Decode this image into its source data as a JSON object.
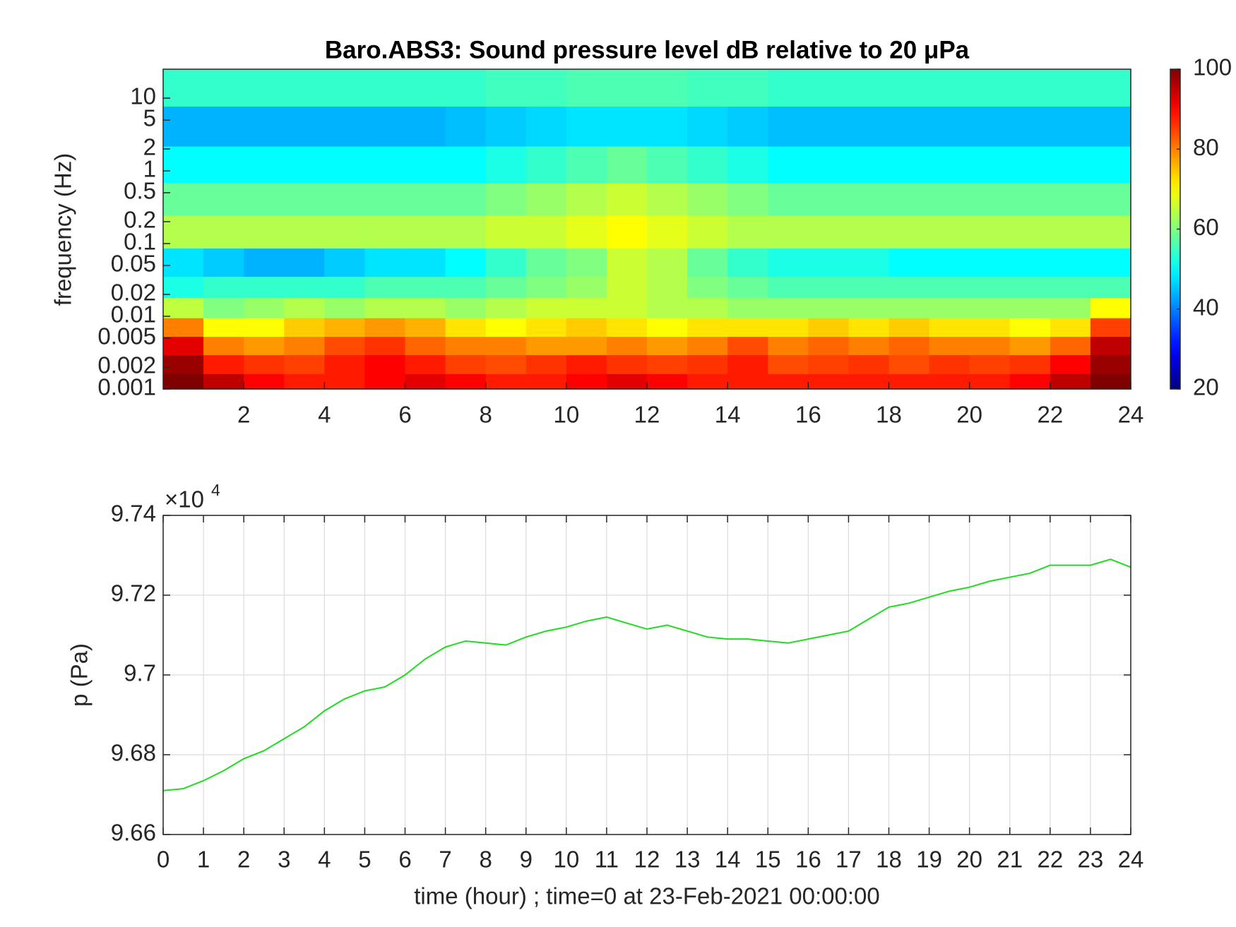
{
  "chart_data": [
    {
      "type": "heatmap",
      "title": "Baro.ABS3: Sound pressure level dB relative to 20 μPa",
      "y_label": "frequency (Hz)",
      "x": [
        0.5,
        1.5,
        2.5,
        3.5,
        4.5,
        5.5,
        6.5,
        7.5,
        8.5,
        9.5,
        10.5,
        11.5,
        12.5,
        13.5,
        14.5,
        15.5,
        16.5,
        17.5,
        18.5,
        19.5,
        20.5,
        21.5,
        22.5,
        23.5
      ],
      "y": [
        0.0012,
        0.0022,
        0.004,
        0.007,
        0.013,
        0.025,
        0.05,
        0.15,
        0.4,
        1.2,
        4,
        15
      ],
      "z": [
        [
          100,
          95,
          90,
          88,
          88,
          90,
          92,
          90,
          88,
          88,
          90,
          92,
          90,
          88,
          88,
          88,
          88,
          88,
          88,
          88,
          88,
          90,
          95,
          100
        ],
        [
          98,
          88,
          86,
          85,
          88,
          90,
          88,
          85,
          84,
          86,
          88,
          86,
          85,
          86,
          88,
          84,
          85,
          86,
          84,
          86,
          85,
          86,
          90,
          98
        ],
        [
          92,
          80,
          78,
          80,
          84,
          86,
          82,
          80,
          80,
          78,
          78,
          80,
          78,
          80,
          84,
          80,
          82,
          80,
          82,
          80,
          80,
          78,
          82,
          95
        ],
        [
          80,
          70,
          70,
          74,
          76,
          78,
          76,
          72,
          70,
          72,
          74,
          72,
          70,
          72,
          72,
          72,
          74,
          72,
          74,
          72,
          72,
          70,
          72,
          85
        ],
        [
          65,
          60,
          62,
          64,
          62,
          64,
          64,
          62,
          64,
          66,
          66,
          66,
          64,
          64,
          62,
          62,
          62,
          62,
          62,
          62,
          62,
          62,
          62,
          70
        ],
        [
          52,
          54,
          54,
          54,
          54,
          56,
          56,
          56,
          58,
          60,
          62,
          66,
          64,
          60,
          58,
          56,
          56,
          56,
          56,
          56,
          56,
          56,
          56,
          56
        ],
        [
          48,
          46,
          44,
          44,
          46,
          48,
          48,
          50,
          54,
          58,
          60,
          66,
          64,
          58,
          54,
          52,
          52,
          52,
          50,
          50,
          50,
          50,
          50,
          50
        ],
        [
          64,
          64,
          64,
          64,
          64,
          64,
          64,
          64,
          66,
          66,
          68,
          70,
          68,
          66,
          64,
          64,
          64,
          64,
          64,
          64,
          64,
          64,
          64,
          64
        ],
        [
          58,
          58,
          58,
          58,
          58,
          58,
          58,
          58,
          60,
          62,
          64,
          66,
          64,
          62,
          60,
          58,
          58,
          58,
          58,
          58,
          58,
          58,
          58,
          58
        ],
        [
          50,
          50,
          50,
          50,
          50,
          50,
          50,
          50,
          52,
          54,
          56,
          58,
          56,
          54,
          52,
          50,
          50,
          50,
          50,
          50,
          50,
          50,
          50,
          50
        ],
        [
          44,
          44,
          44,
          44,
          44,
          44,
          44,
          45,
          46,
          47,
          48,
          48,
          48,
          47,
          46,
          45,
          45,
          45,
          45,
          45,
          45,
          45,
          45,
          45
        ],
        [
          54,
          54,
          54,
          54,
          54,
          54,
          54,
          54,
          55,
          55,
          56,
          56,
          56,
          55,
          55,
          54,
          54,
          54,
          54,
          54,
          54,
          54,
          54,
          54
        ]
      ],
      "xlim": [
        0,
        24
      ],
      "xticks": [
        2,
        4,
        6,
        8,
        10,
        12,
        14,
        16,
        18,
        20,
        22,
        24
      ],
      "ylim": [
        0.001,
        25
      ],
      "log_y": true,
      "yticks": [
        0.001,
        0.002,
        0.005,
        0.01,
        0.02,
        0.05,
        0.1,
        0.2,
        0.5,
        1,
        2,
        5,
        10
      ],
      "colormap": "jet",
      "clim": [
        20,
        100
      ],
      "colorbar_ticks": [
        20,
        40,
        60,
        80,
        100
      ]
    },
    {
      "type": "line",
      "x_label": "time (hour) ; time=0 at 23-Feb-2021 00:00:00",
      "y_label": "p (Pa)",
      "y_multiplier": "×10",
      "y_multiplier_exponent": "4",
      "x": [
        0,
        0.5,
        1,
        1.5,
        2,
        2.5,
        3,
        3.5,
        4,
        4.5,
        5,
        5.5,
        6,
        6.5,
        7,
        7.5,
        8,
        8.5,
        9,
        9.5,
        10,
        10.5,
        11,
        11.5,
        12,
        12.5,
        13,
        13.5,
        14,
        14.5,
        15,
        15.5,
        16,
        16.5,
        17,
        17.5,
        18,
        18.5,
        19,
        19.5,
        20,
        20.5,
        21,
        21.5,
        22,
        22.5,
        23,
        23.5,
        24
      ],
      "series": [
        {
          "color": "#1edc1e",
          "values": [
            96710,
            96715,
            96735,
            96760,
            96790,
            96810,
            96840,
            96870,
            96910,
            96940,
            96960,
            96970,
            97000,
            97040,
            97070,
            97085,
            97080,
            97075,
            97095,
            97110,
            97120,
            97135,
            97145,
            97130,
            97115,
            97125,
            97110,
            97095,
            97090,
            97090,
            97085,
            97080,
            97090,
            97100,
            97110,
            97140,
            97170,
            97180,
            97195,
            97210,
            97220,
            97235,
            97245,
            97255,
            97275,
            97275,
            97275,
            97290,
            97270
          ]
        }
      ],
      "xlim": [
        0,
        24
      ],
      "xticks": [
        0,
        1,
        2,
        3,
        4,
        5,
        6,
        7,
        8,
        9,
        10,
        11,
        12,
        13,
        14,
        15,
        16,
        17,
        18,
        19,
        20,
        21,
        22,
        23,
        24
      ],
      "ylim": [
        96600,
        97400
      ],
      "yticks": [
        {
          "value": 96600,
          "label": "9.66"
        },
        {
          "value": 96800,
          "label": "9.68"
        },
        {
          "value": 97000,
          "label": "9.7"
        },
        {
          "value": 97200,
          "label": "9.72"
        },
        {
          "value": 97400,
          "label": "9.74"
        }
      ],
      "grid": true
    }
  ]
}
